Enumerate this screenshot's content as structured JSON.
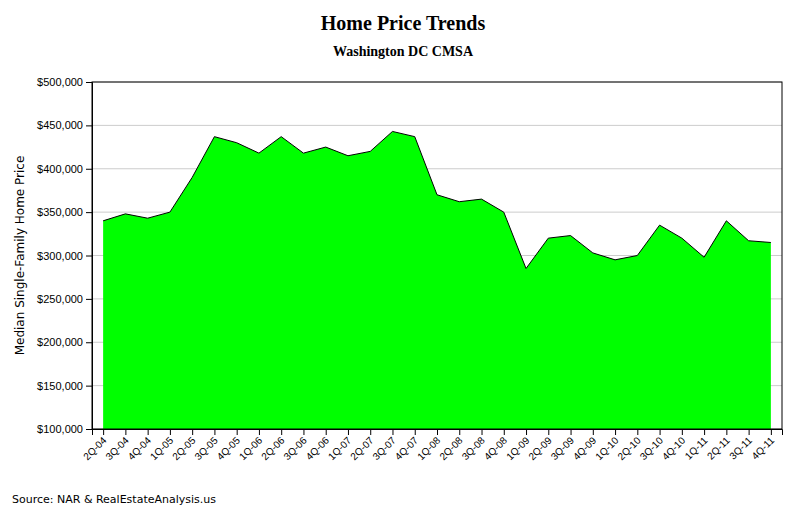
{
  "chart_data": {
    "type": "area",
    "title": "Home Price Trends",
    "subtitle": "Washington DC CMSA",
    "y_label": "Median Single-Family Home Price",
    "annotations": [
      "Source: NAR & RealEstateAnalysis.us"
    ],
    "categories": [
      "2Q-04",
      "3Q-04",
      "4Q-04",
      "1Q-05",
      "2Q-05",
      "3Q-05",
      "4Q-05",
      "1Q-06",
      "2Q-06",
      "3Q-06",
      "4Q-06",
      "1Q-07",
      "2Q-07",
      "3Q-07",
      "4Q-07",
      "1Q-08",
      "2Q-08",
      "3Q-08",
      "4Q-08",
      "1Q-09",
      "2Q-09",
      "3Q-09",
      "4Q-09",
      "1Q-10",
      "2Q-10",
      "3Q-10",
      "4Q-10",
      "1Q-11",
      "2Q-11",
      "3Q-11",
      "4Q-11"
    ],
    "values": [
      340000,
      348000,
      343000,
      350000,
      390000,
      437000,
      430000,
      418000,
      437000,
      418000,
      425000,
      415000,
      420000,
      443000,
      437000,
      370000,
      362000,
      365000,
      350000,
      285000,
      320000,
      323000,
      303000,
      295000,
      300000,
      335000,
      320000,
      298000,
      340000,
      317000,
      315000
    ],
    "color": "#00FF00",
    "ylim": [
      100000,
      500000
    ],
    "yticks": [
      {
        "value": 100000,
        "label": "$100,000"
      },
      {
        "value": 150000,
        "label": "$150,000"
      },
      {
        "value": 200000,
        "label": "$200,000"
      },
      {
        "value": 250000,
        "label": "$250,000"
      },
      {
        "value": 300000,
        "label": "$300,000"
      },
      {
        "value": 350000,
        "label": "$350,000"
      },
      {
        "value": 400000,
        "label": "$400,000"
      },
      {
        "value": 450000,
        "label": "$450,000"
      },
      {
        "value": 500000,
        "label": "$500,000"
      }
    ],
    "grid": true
  }
}
